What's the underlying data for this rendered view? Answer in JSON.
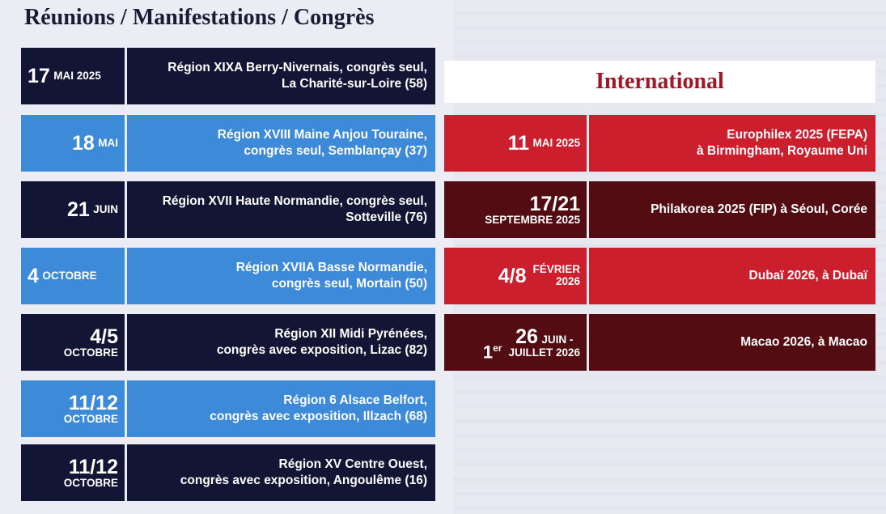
{
  "section_title": "Réunions / Manifestations / Congrès",
  "international_title": "International",
  "events": [
    {
      "date_big": "17",
      "date_small": "MAI 2025",
      "line1": "Région XIXA Berry-Nivernais, congrès seul,",
      "line2": "La Charité-sur-Loire (58)"
    },
    {
      "date_big": "18",
      "date_small": "MAI",
      "line1": "Région XVIII Maine Anjou Touraine,",
      "line2": "congrès seul, Semblançay (37)"
    },
    {
      "date_big": "21",
      "date_small": "JUIN",
      "line1": "Région XVII Haute Normandie, congrès seul,",
      "line2": "Sotteville (76)"
    },
    {
      "date_big": "4",
      "date_small": "OCTOBRE",
      "line1": "Région XVIIA Basse Normandie,",
      "line2": "congrès seul, Mortain (50)"
    },
    {
      "date_big": "4/5",
      "date_small": "OCTOBRE",
      "line1": "Région XII Midi Pyrénées,",
      "line2": "congrès avec  exposition, Lizac (82)"
    },
    {
      "date_big": "11/12",
      "date_small": "OCTOBRE",
      "line1": "Région 6 Alsace Belfort,",
      "line2": "congrès avec exposition, Illzach (68)"
    },
    {
      "date_big": "11/12",
      "date_small": "OCTOBRE",
      "line1": "Région XV Centre Ouest,",
      "line2": "congrès avec exposition, Angoulême (16)"
    }
  ],
  "international": [
    {
      "date_big": "11",
      "date_small": "MAI 2025",
      "line1": "Europhilex 2025 (FEPA)",
      "line2": "à Birmingham, Royaume Uni"
    },
    {
      "date_big": "17/21",
      "date_small": "SEPTEMBRE 2025",
      "line1": "Philakorea 2025 (FIP) à Séoul, Corée",
      "line2": ""
    },
    {
      "date_big": "4/8",
      "date_small": "FÉVRIER",
      "date_small2": "2026",
      "line1": "Dubaï 2026, à Dubaï",
      "line2": ""
    },
    {
      "date_pre": "1",
      "date_pre_sup": "er",
      "date_big": "26",
      "date_small": "JUIN -",
      "date_small2": "JUILLET 2026",
      "line1": "Macao 2026, à Macao",
      "line2": ""
    }
  ],
  "colors": {
    "navy": "#121634",
    "blue": "#3d8ad8",
    "red": "#cc1f2d",
    "maroon": "#530c12",
    "title": "#1a1c35",
    "intl_title": "#a11624"
  }
}
